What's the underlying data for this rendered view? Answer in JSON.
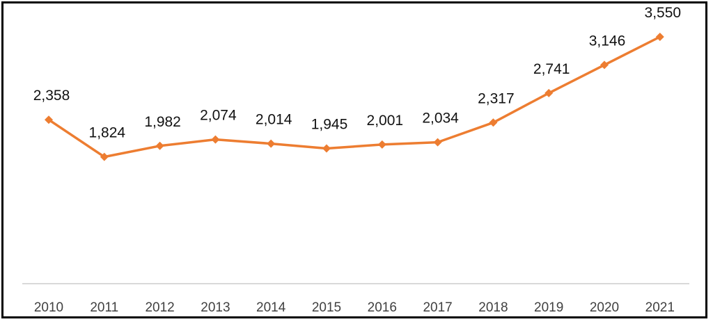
{
  "chart_data": {
    "type": "line",
    "title": "",
    "xlabel": "",
    "ylabel": "",
    "categories": [
      "2010",
      "2011",
      "2012",
      "2013",
      "2014",
      "2015",
      "2016",
      "2017",
      "2018",
      "2019",
      "2020",
      "2021"
    ],
    "series": [
      {
        "values": [
          2358,
          1824,
          1982,
          2074,
          2014,
          1945,
          2001,
          2034,
          2317,
          2741,
          3146,
          3550
        ],
        "labels": [
          "2,358",
          "1,824",
          "1,982",
          "2,074",
          "2,014",
          "1,945",
          "2,001",
          "2,034",
          "2,317",
          "2,741",
          "3,146",
          "3,550"
        ],
        "color": "#ED7D31"
      }
    ],
    "ylim": [
      0,
      4000
    ],
    "grid": false,
    "legend": "none",
    "axis_color": "#D9D9D9"
  }
}
